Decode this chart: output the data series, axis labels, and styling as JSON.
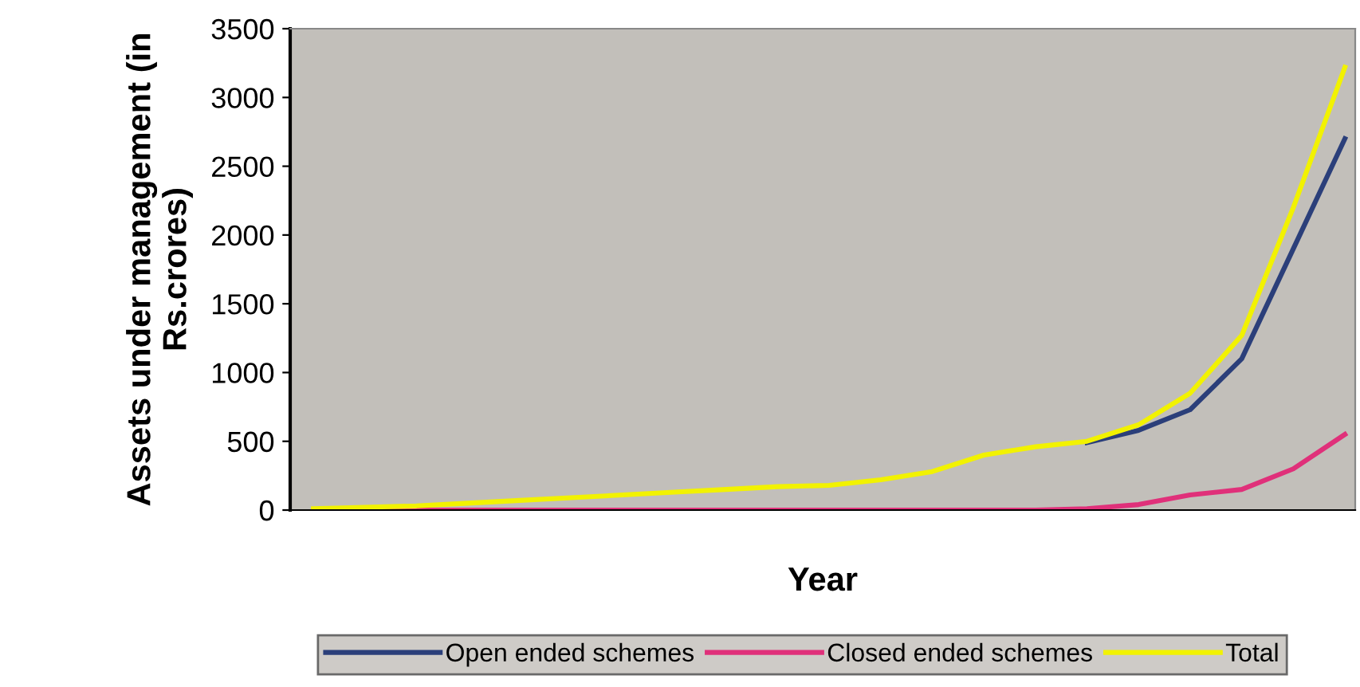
{
  "chart_data": {
    "type": "line",
    "xlabel": "Year",
    "ylabel": "Assets under management (in Rs.crores)",
    "categories": [
      null,
      null,
      null,
      null,
      null,
      null,
      null,
      null,
      null,
      null,
      null,
      null,
      null,
      null,
      null,
      null,
      null,
      null,
      null,
      null,
      null
    ],
    "series": [
      {
        "name": "Open ended schemes",
        "color": "#2b3f7a",
        "values": [
          null,
          null,
          null,
          null,
          null,
          null,
          null,
          null,
          null,
          null,
          null,
          null,
          null,
          null,
          null,
          490,
          580,
          730,
          1100,
          1900,
          2700
        ]
      },
      {
        "name": "Closed ended schemes",
        "color": "#e0307a",
        "values": [
          0,
          0,
          0,
          0,
          0,
          0,
          0,
          0,
          0,
          0,
          0,
          0,
          0,
          0,
          0,
          10,
          40,
          110,
          150,
          300,
          550
        ]
      },
      {
        "name": "Total",
        "color": "#f2f200",
        "values": [
          10,
          20,
          30,
          50,
          70,
          90,
          110,
          130,
          150,
          170,
          180,
          220,
          280,
          400,
          460,
          500,
          620,
          850,
          1270,
          2200,
          3220
        ]
      }
    ],
    "ylim": [
      0,
      3500
    ],
    "yticks": [
      0,
      500,
      1000,
      1500,
      2000,
      2500,
      3000,
      3500
    ],
    "grid": false,
    "legend": "bottom",
    "marker": "none",
    "line_style": "solid"
  }
}
